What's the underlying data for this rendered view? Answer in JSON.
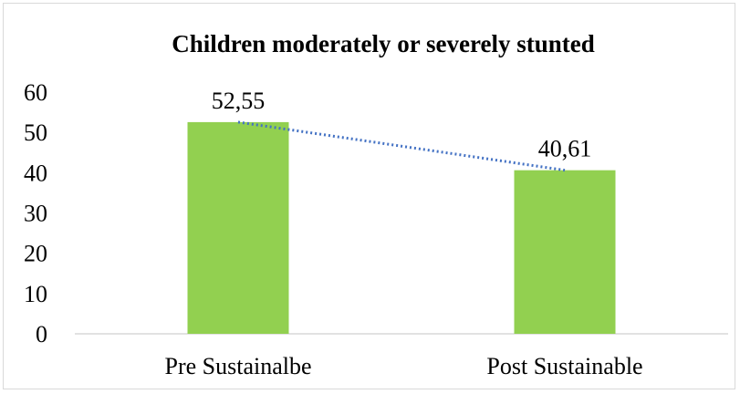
{
  "chart_data": {
    "type": "bar",
    "title": "Children moderately or severely stunted",
    "categories": [
      "Pre Sustainalbe",
      "Post Sustainable"
    ],
    "values": [
      52.55,
      40.61
    ],
    "data_labels": [
      "52,55",
      "40,61"
    ],
    "ylim": [
      0,
      60
    ],
    "yticks": [
      0,
      10,
      20,
      30,
      40,
      50,
      60
    ],
    "xlabel": "",
    "ylabel": "",
    "grid": false,
    "legend": "none",
    "trendline": "linear dotted",
    "bar_color": "#92d050",
    "trendline_color": "#4472c4"
  }
}
